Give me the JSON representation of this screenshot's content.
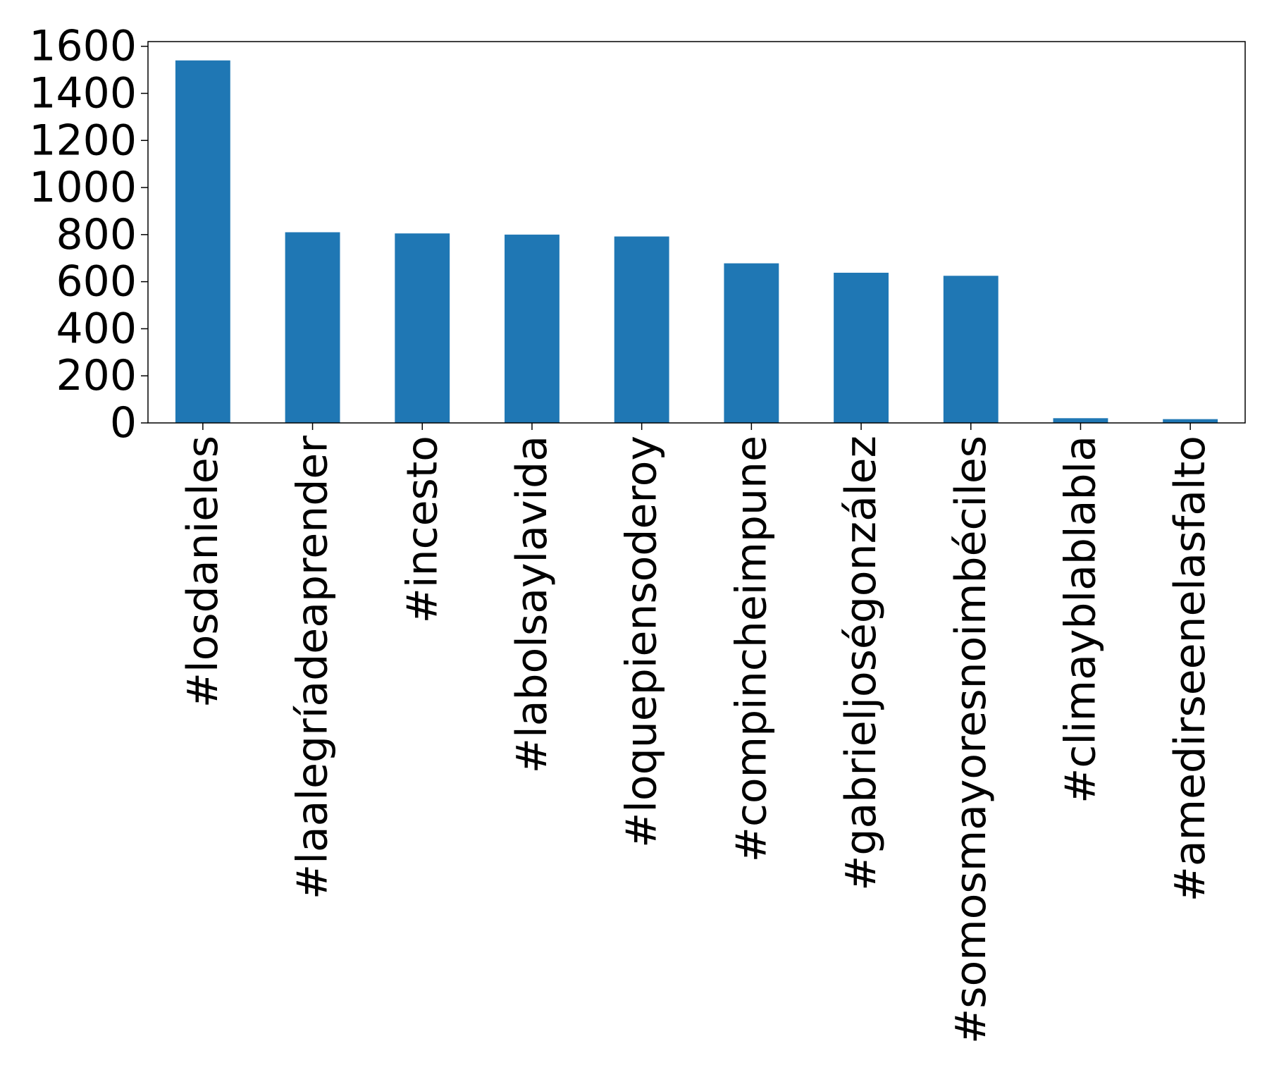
{
  "chart_data": {
    "type": "bar",
    "title": "",
    "xlabel": "",
    "ylabel": "",
    "categories": [
      "#losdanieles",
      "#laalegríadeaprender",
      "#incesto",
      "#labolsaylavida",
      "#loquepiensoderoy",
      "#compincheimpune",
      "#gabrieljoségonzález",
      "#somosmayoresnoimbéciles",
      "#climayblablabla",
      "#amedirseenelasfalto"
    ],
    "values": [
      1540,
      810,
      805,
      800,
      792,
      678,
      638,
      625,
      20,
      16
    ],
    "ylim": [
      0,
      1620
    ],
    "yticks": [
      0,
      200,
      400,
      600,
      800,
      1000,
      1200,
      1400,
      1600
    ],
    "grid": false,
    "legend": "none",
    "bar_color": "#1f77b4"
  }
}
